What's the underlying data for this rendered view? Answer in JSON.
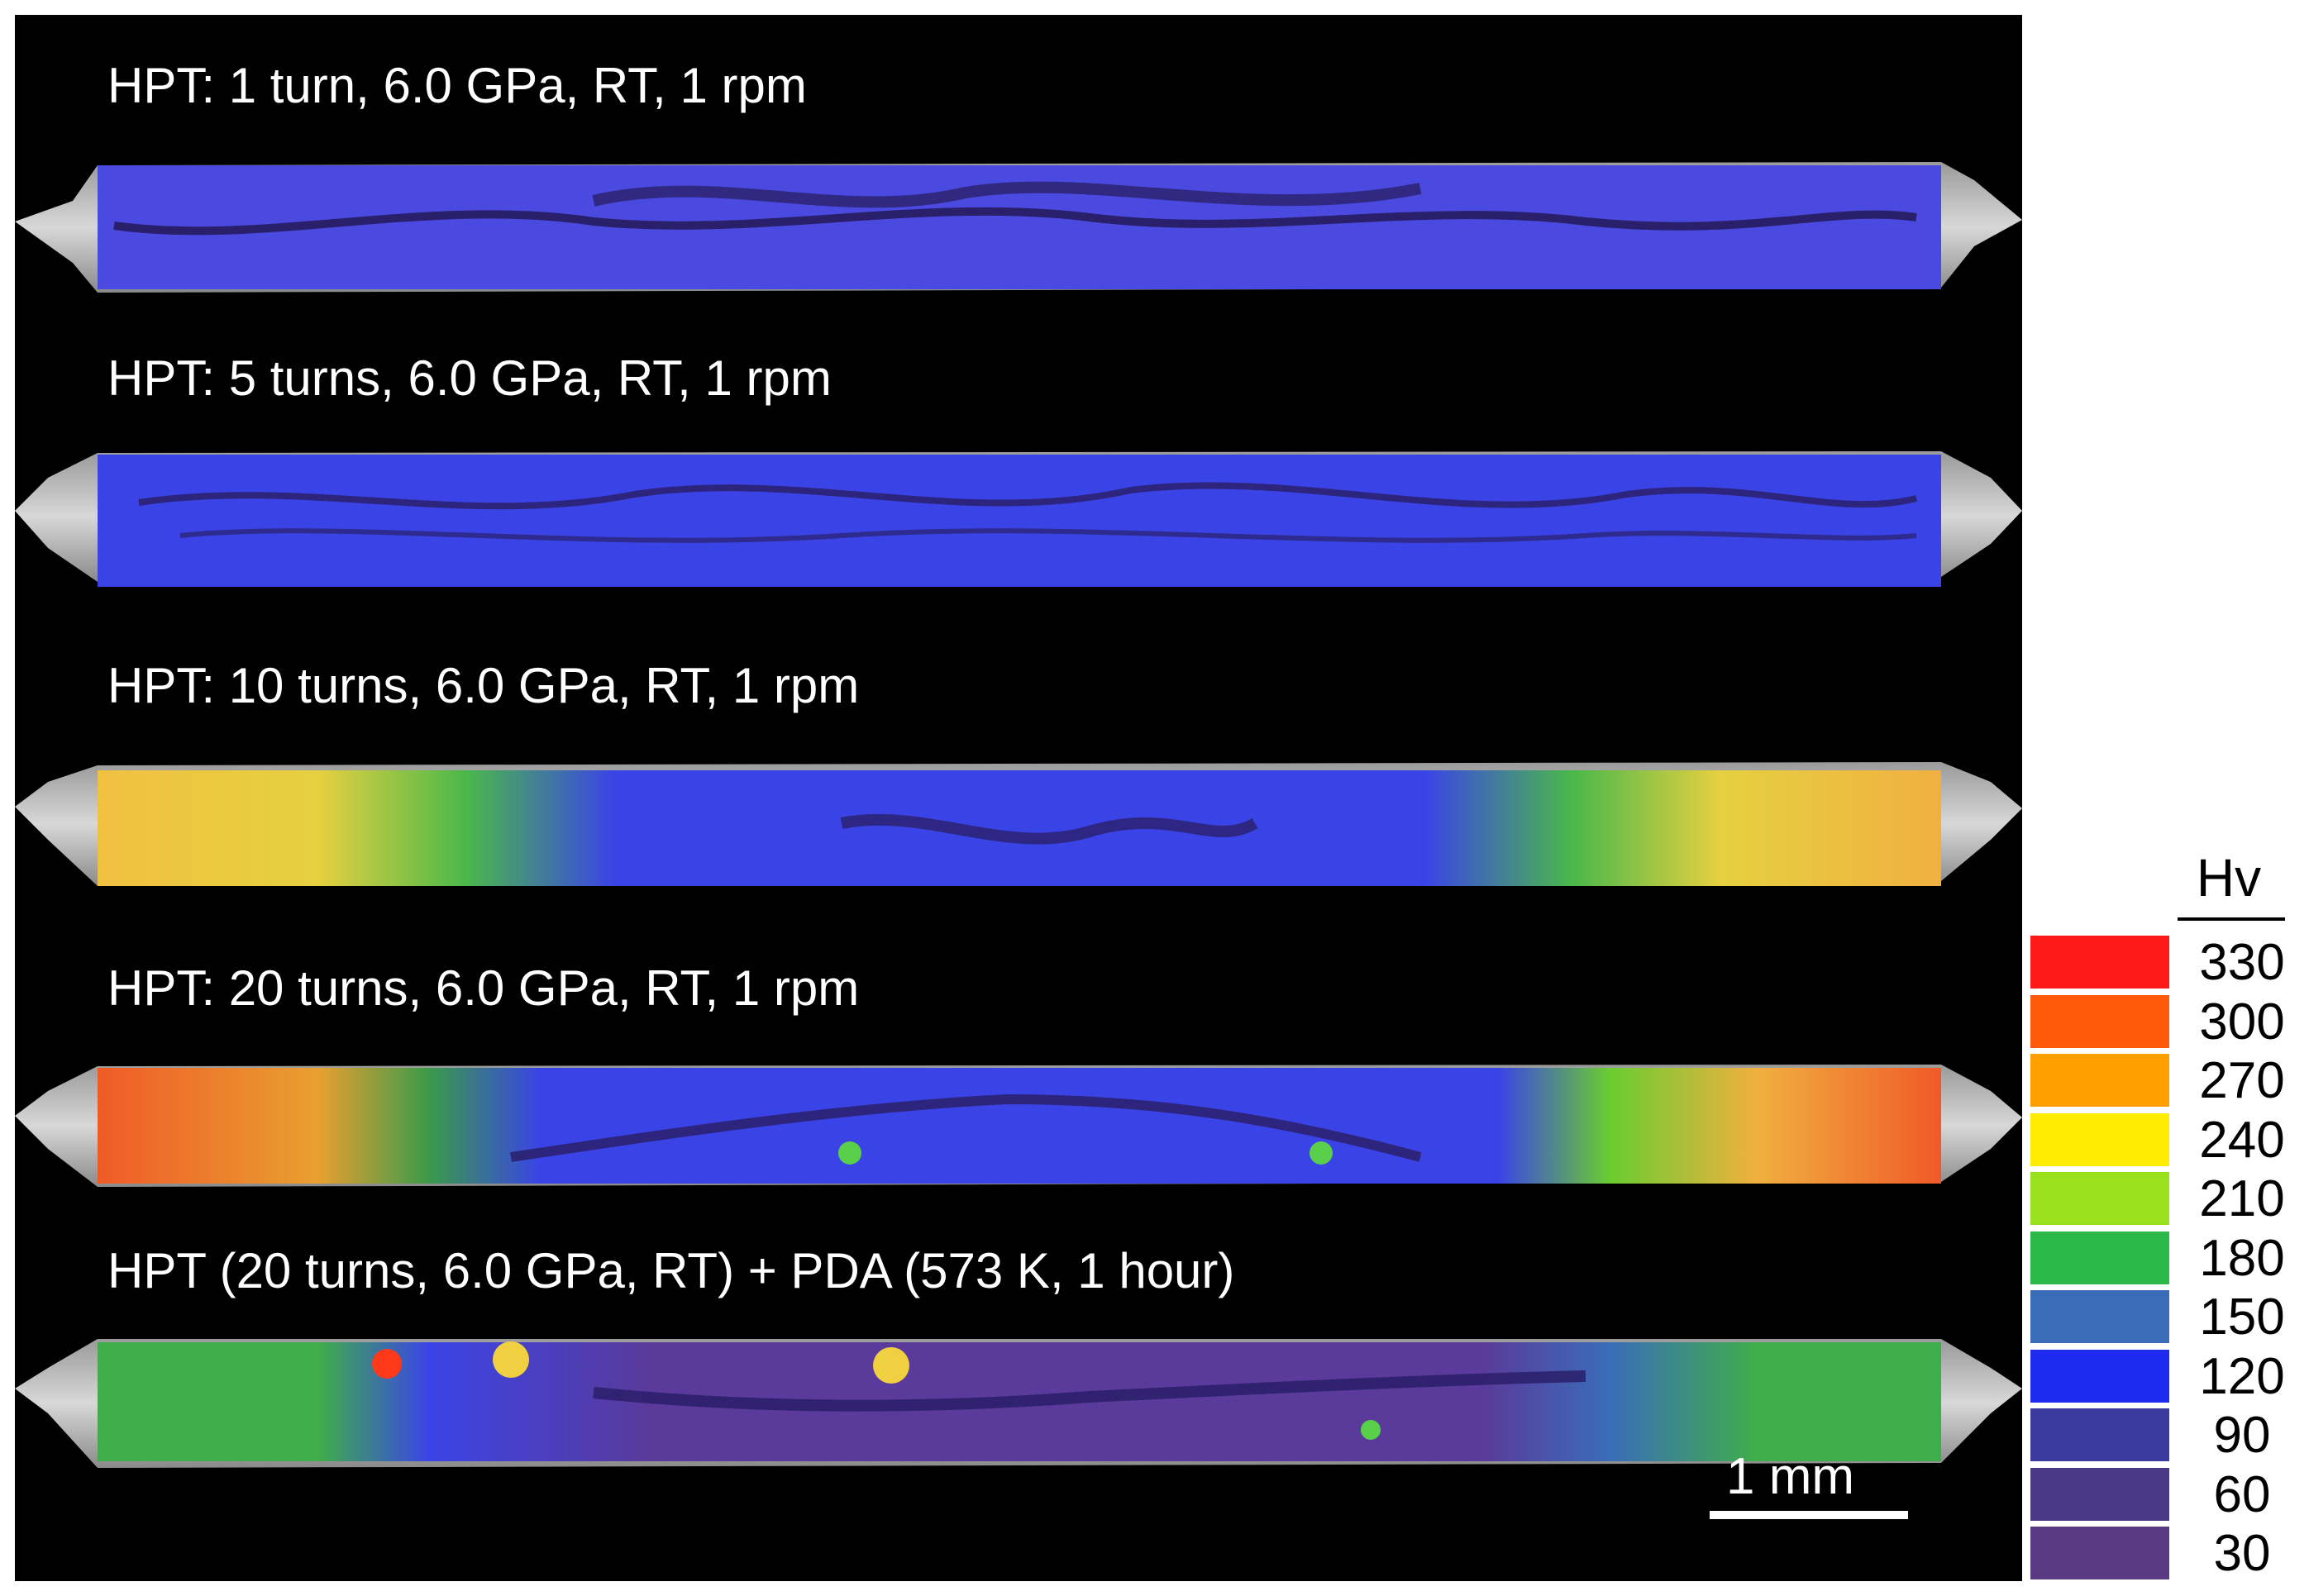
{
  "panels": [
    {
      "label": "HPT: 1 turn, 6.0 GPa, RT, 1 rpm"
    },
    {
      "label": "HPT: 5 turns, 6.0 GPa, RT, 1 rpm"
    },
    {
      "label": "HPT: 10 turns, 6.0 GPa, RT, 1 rpm"
    },
    {
      "label": "HPT: 20 turns, 6.0 GPa, RT, 1 rpm"
    },
    {
      "label": "HPT (20 turns, 6.0 GPa, RT) + PDA (573 K, 1 hour)"
    }
  ],
  "scale_bar": {
    "label": "1 mm"
  },
  "legend": {
    "title": "Hv",
    "entries": [
      {
        "value": "330",
        "color": "#ff1a1a"
      },
      {
        "value": "300",
        "color": "#ff5a0a"
      },
      {
        "value": "270",
        "color": "#ffa000"
      },
      {
        "value": "240",
        "color": "#ffec00"
      },
      {
        "value": "210",
        "color": "#9be21e"
      },
      {
        "value": "180",
        "color": "#2db84a"
      },
      {
        "value": "150",
        "color": "#3a6cb8"
      },
      {
        "value": "120",
        "color": "#1e2aee"
      },
      {
        "value": "90",
        "color": "#3a3a9e"
      },
      {
        "value": "60",
        "color": "#4a3a86"
      },
      {
        "value": "30",
        "color": "#5a3a82"
      }
    ]
  }
}
